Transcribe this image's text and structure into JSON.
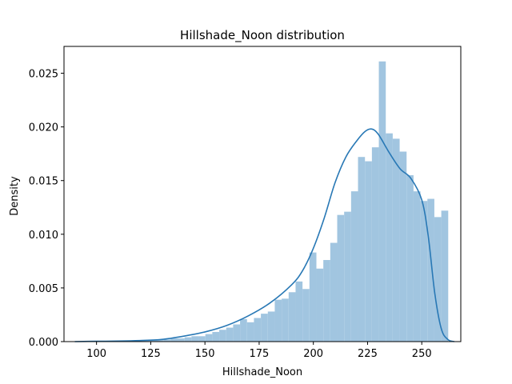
{
  "chart_data": {
    "type": "bar",
    "title": "Hillshade_Noon distribution",
    "xlabel": "Hillshade_Noon",
    "ylabel": "Density",
    "xlim": [
      85,
      268
    ],
    "ylim": [
      0,
      0.0275
    ],
    "xticks": [
      100,
      125,
      150,
      175,
      200,
      225,
      250
    ],
    "yticks": [
      0.0,
      0.005,
      0.01,
      0.015,
      0.02,
      0.025
    ],
    "ytick_labels": [
      "0.000",
      "0.005",
      "0.010",
      "0.015",
      "0.020",
      "0.025"
    ],
    "grid": false,
    "histogram": {
      "bin_start": 99,
      "bin_width": 3.2,
      "values": [
        5e-05,
        5e-05,
        5e-05,
        8e-05,
        8e-05,
        0.0001,
        0.0001,
        0.00012,
        0.00015,
        0.0002,
        0.0002,
        0.0003,
        0.0003,
        0.0004,
        0.0005,
        0.0005,
        0.0007,
        0.0009,
        0.0011,
        0.0013,
        0.0016,
        0.0021,
        0.0018,
        0.0022,
        0.0026,
        0.0028,
        0.0039,
        0.004,
        0.0046,
        0.0056,
        0.0049,
        0.0083,
        0.0068,
        0.0076,
        0.0092,
        0.0118,
        0.0121,
        0.014,
        0.0172,
        0.0168,
        0.0181,
        0.0261,
        0.0194,
        0.0189,
        0.0177,
        0.0155,
        0.014,
        0.0131,
        0.0133,
        0.0116,
        0.0122
      ]
    },
    "kde": {
      "x": [
        90,
        100,
        110,
        120,
        130,
        140,
        150,
        160,
        170,
        180,
        190,
        195,
        200,
        205,
        210,
        215,
        220,
        224,
        227,
        230,
        235,
        240,
        245,
        250,
        253,
        256,
        259,
        262,
        265
      ],
      "y": [
        0.0,
        3e-05,
        5e-05,
        0.0001,
        0.0002,
        0.0005,
        0.0009,
        0.0015,
        0.0024,
        0.0036,
        0.0053,
        0.0066,
        0.0087,
        0.0115,
        0.0148,
        0.0172,
        0.0187,
        0.0196,
        0.0198,
        0.0193,
        0.0176,
        0.0161,
        0.0152,
        0.0132,
        0.0098,
        0.0045,
        0.0012,
        0.0002,
        0.0
      ]
    },
    "colors": {
      "bar": "#a1c5e0",
      "line": "#2878b5"
    }
  }
}
